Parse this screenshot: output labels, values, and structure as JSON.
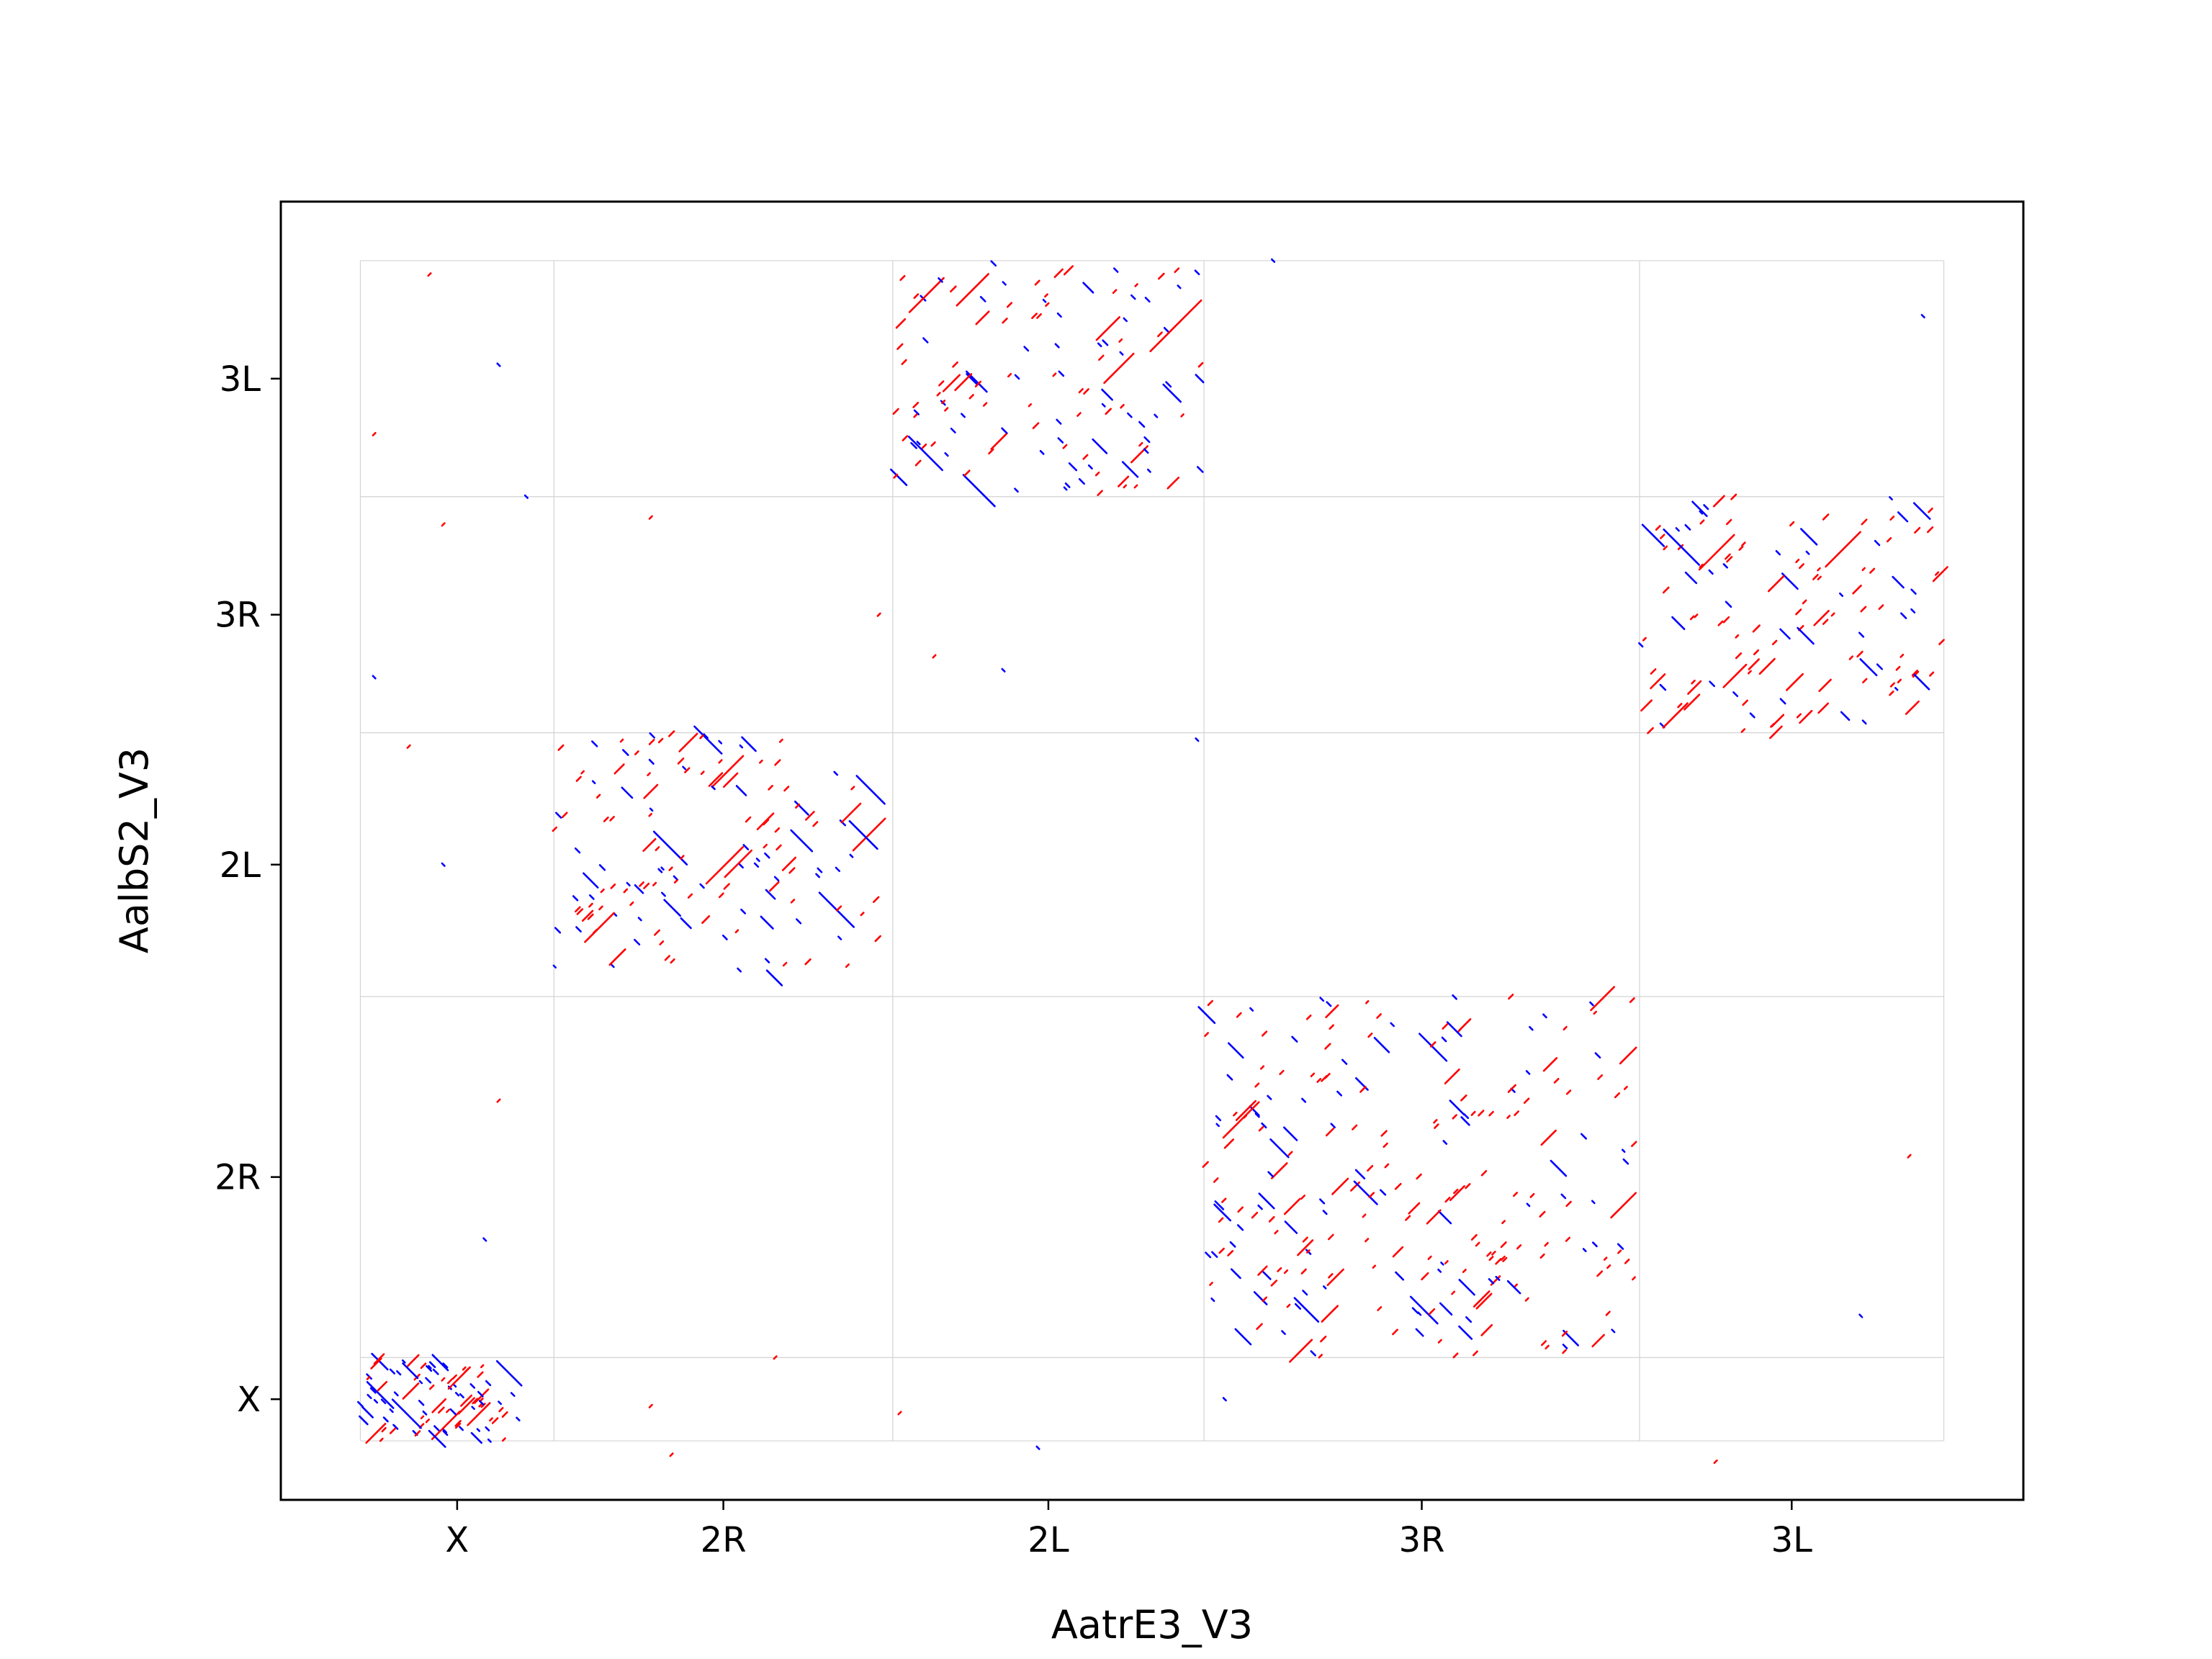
{
  "chart_data": {
    "type": "scatter",
    "title": "",
    "xlabel": "AatrE3_V3",
    "ylabel": "AalbS2_V3",
    "grid": true,
    "legend": "none",
    "colors": {
      "forward": "#ff0000",
      "reverse": "#0000ff",
      "grid": "#d3d3d3",
      "frame": "#000000"
    },
    "x_tick_labels": [
      "X",
      "2R",
      "2L",
      "3R",
      "3L"
    ],
    "y_tick_labels": [
      "X",
      "2R",
      "2L",
      "3R",
      "3L"
    ],
    "x_boundaries": [
      0,
      28,
      77,
      122,
      185,
      229
    ],
    "y_boundaries": [
      0,
      12,
      64,
      102,
      136,
      170
    ],
    "xlim": [
      -11.5,
      240.5
    ],
    "ylim": [
      -8.5,
      178.5
    ],
    "synteny_blocks": [
      {
        "x_chrom": "X",
        "y_chrom": "X",
        "x_range": [
          0,
          23
        ],
        "y_range": [
          0,
          12
        ],
        "density": 100,
        "forward_share": 0.5
      },
      {
        "x_chrom": "2R",
        "y_chrom": "2L",
        "x_range": [
          28,
          75
        ],
        "y_range": [
          66,
          102
        ],
        "density": 150,
        "forward_share": 0.62
      },
      {
        "x_chrom": "2L",
        "y_chrom": "3L",
        "x_range": [
          77,
          122
        ],
        "y_range": [
          136,
          170
        ],
        "density": 130,
        "forward_share": 0.6
      },
      {
        "x_chrom": "3R",
        "y_chrom": "2R",
        "x_range": [
          122,
          185
        ],
        "y_range": [
          12,
          64
        ],
        "density": 250,
        "forward_share": 0.6
      },
      {
        "x_chrom": "3L",
        "y_chrom": "3R",
        "x_range": [
          185,
          229
        ],
        "y_range": [
          102,
          136
        ],
        "density": 130,
        "forward_share": 0.6
      }
    ],
    "outliers": [
      {
        "x": 10,
        "y": 168,
        "strand": "+"
      },
      {
        "x": 20,
        "y": 155,
        "strand": "-"
      },
      {
        "x": 2,
        "y": 145,
        "strand": "+"
      },
      {
        "x": 24,
        "y": 136,
        "strand": "-"
      },
      {
        "x": 12,
        "y": 132,
        "strand": "+"
      },
      {
        "x": 2,
        "y": 110,
        "strand": "-"
      },
      {
        "x": 7,
        "y": 100,
        "strand": "+"
      },
      {
        "x": 12,
        "y": 83,
        "strand": "-"
      },
      {
        "x": 20,
        "y": 49,
        "strand": "+"
      },
      {
        "x": 18,
        "y": 29,
        "strand": "-"
      },
      {
        "x": 42,
        "y": 133,
        "strand": "+"
      },
      {
        "x": 75,
        "y": 119,
        "strand": "+"
      },
      {
        "x": 83,
        "y": 113,
        "strand": "+"
      },
      {
        "x": 93,
        "y": 111,
        "strand": "-"
      },
      {
        "x": 132,
        "y": 170,
        "strand": "-"
      },
      {
        "x": 121,
        "y": 101,
        "strand": "-"
      },
      {
        "x": 42,
        "y": 5,
        "strand": "+"
      },
      {
        "x": 45,
        "y": -2,
        "strand": "+"
      },
      {
        "x": 78,
        "y": 4,
        "strand": "+"
      },
      {
        "x": 98,
        "y": -1,
        "strand": "-"
      },
      {
        "x": 125,
        "y": 6,
        "strand": "-"
      },
      {
        "x": 196,
        "y": -3,
        "strand": "+"
      },
      {
        "x": 224,
        "y": 41,
        "strand": "+"
      },
      {
        "x": 226,
        "y": 162,
        "strand": "-"
      },
      {
        "x": 217,
        "y": 18,
        "strand": "-"
      },
      {
        "x": 60,
        "y": 12,
        "strand": "+"
      }
    ]
  }
}
